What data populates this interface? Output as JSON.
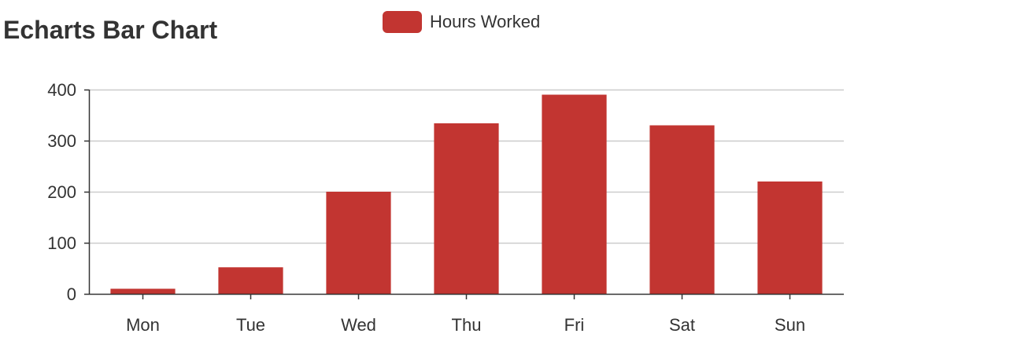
{
  "chart_data": {
    "type": "bar",
    "title": "Echarts Bar Chart",
    "categories": [
      "Mon",
      "Tue",
      "Wed",
      "Thu",
      "Fri",
      "Sat",
      "Sun"
    ],
    "series": [
      {
        "name": "Hours Worked",
        "values": [
          10,
          52,
          200,
          334,
          390,
          330,
          220
        ],
        "color": "#c23531"
      }
    ],
    "xlabel": "",
    "ylabel": "",
    "ylim": [
      0,
      400
    ],
    "yticks": [
      0,
      100,
      200,
      300,
      400
    ],
    "grid": true,
    "legend_position": "top-center"
  },
  "colors": {
    "bar": "#c23531",
    "grid": "#cccccc",
    "axis": "#333333",
    "text": "#333333"
  }
}
